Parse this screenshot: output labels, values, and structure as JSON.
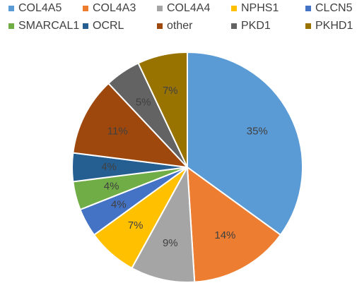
{
  "chart_data": {
    "type": "pie",
    "title": "",
    "legend_position": "top",
    "slices": [
      {
        "label": "COL4A5",
        "value": 35,
        "value_label": "35%",
        "color": "#5B9BD5"
      },
      {
        "label": "COL4A3",
        "value": 14,
        "value_label": "14%",
        "color": "#ED7D31"
      },
      {
        "label": "COL4A4",
        "value": 9,
        "value_label": "9%",
        "color": "#A5A5A5"
      },
      {
        "label": "NPHS1",
        "value": 7,
        "value_label": "7%",
        "color": "#FFC000"
      },
      {
        "label": "CLCN5",
        "value": 4,
        "value_label": "4%",
        "color": "#4472C4"
      },
      {
        "label": "SMARCAL1",
        "value": 4,
        "value_label": "4%",
        "color": "#70AD47"
      },
      {
        "label": "OCRL",
        "value": 4,
        "value_label": "4%",
        "color": "#255E91"
      },
      {
        "label": "other",
        "value": 11,
        "value_label": "11%",
        "color": "#9E480E"
      },
      {
        "label": "PKD1",
        "value": 5,
        "value_label": "5%",
        "color": "#636363"
      },
      {
        "label": "PKHD1",
        "value": 7,
        "value_label": "7%",
        "color": "#997300"
      }
    ]
  }
}
